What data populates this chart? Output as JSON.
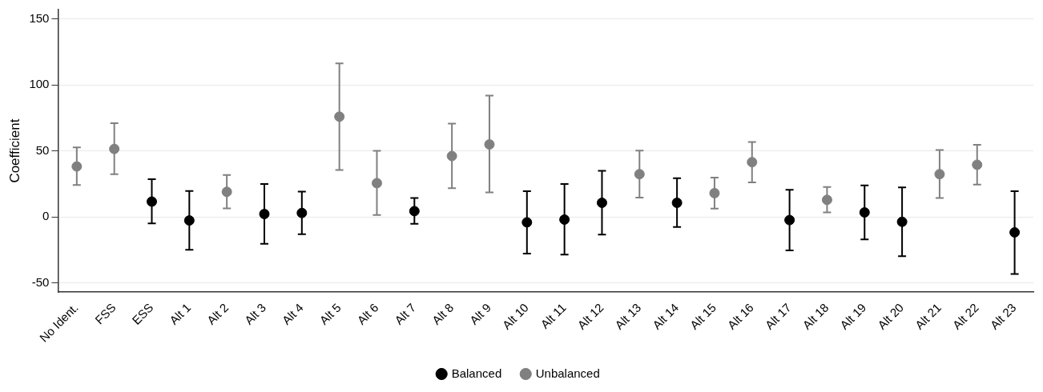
{
  "chart_data": {
    "type": "scatter",
    "ylabel": "Coefficient",
    "categories": [
      "No Ident.",
      "FSS",
      "ESS",
      "Alt 1",
      "Alt 2",
      "Alt 3",
      "Alt 4",
      "Alt 5",
      "Alt 6",
      "Alt 7",
      "Alt 8",
      "Alt 9",
      "Alt 10",
      "Alt 11",
      "Alt 12",
      "Alt 13",
      "Alt 14",
      "Alt 15",
      "Alt 16",
      "Alt 17",
      "Alt 18",
      "Alt 19",
      "Alt 20",
      "Alt 21",
      "Alt 22",
      "Alt 23"
    ],
    "series": [
      {
        "name": "Balanced",
        "color": "#000000",
        "values": [
          null,
          null,
          11.6,
          -2.7,
          null,
          2.2,
          3,
          null,
          null,
          4.4,
          null,
          null,
          -4.1,
          -2,
          10.7,
          null,
          10.7,
          null,
          null,
          -2.4,
          null,
          3.4,
          -3.7,
          null,
          null,
          -11.7
        ],
        "errors": [
          null,
          null,
          [
            -4.9,
            28.6
          ],
          [
            -24.9,
            19.7
          ],
          null,
          [
            -20.4,
            24.9
          ],
          [
            -13.1,
            19.2
          ],
          null,
          null,
          [
            -5.2,
            14.3
          ],
          null,
          null,
          [
            -27.8,
            19.5
          ],
          [
            -28.5,
            24.9
          ],
          [
            -13.4,
            34.9
          ],
          null,
          [
            -7.6,
            29.3
          ],
          null,
          null,
          [
            -25.4,
            20.5
          ],
          null,
          [
            -17.1,
            23.9
          ],
          [
            -29.8,
            22.4
          ],
          null,
          null,
          [
            -43.2,
            19.5
          ]
        ]
      },
      {
        "name": "Unbalanced",
        "color": "#808080",
        "values": [
          38.2,
          51.5,
          null,
          null,
          19,
          null,
          null,
          75.9,
          25.6,
          null,
          46.1,
          54.9,
          null,
          null,
          null,
          32.4,
          null,
          18,
          41.5,
          null,
          12.9,
          null,
          null,
          32.4,
          39.5,
          null
        ],
        "errors": [
          [
            24.1,
            52.7
          ],
          [
            32.3,
            70.9
          ],
          null,
          null,
          [
            6.4,
            31.8
          ],
          null,
          null,
          [
            35.5,
            116.3
          ],
          [
            1.5,
            50
          ],
          null,
          [
            21.7,
            70.7
          ],
          [
            18.5,
            91.9
          ],
          null,
          null,
          null,
          [
            14.6,
            50.2
          ],
          null,
          [
            6.3,
            29.8
          ],
          [
            26.1,
            56.8
          ],
          null,
          [
            3.4,
            22.7
          ],
          null,
          null,
          [
            14.4,
            50.7
          ],
          [
            24.4,
            54.6
          ],
          null
        ]
      }
    ],
    "ylim": [
      -57,
      157
    ],
    "yticks": [
      -50,
      0,
      50,
      100,
      150
    ],
    "grid": "y",
    "legend": "bottom",
    "marker": "circle"
  }
}
